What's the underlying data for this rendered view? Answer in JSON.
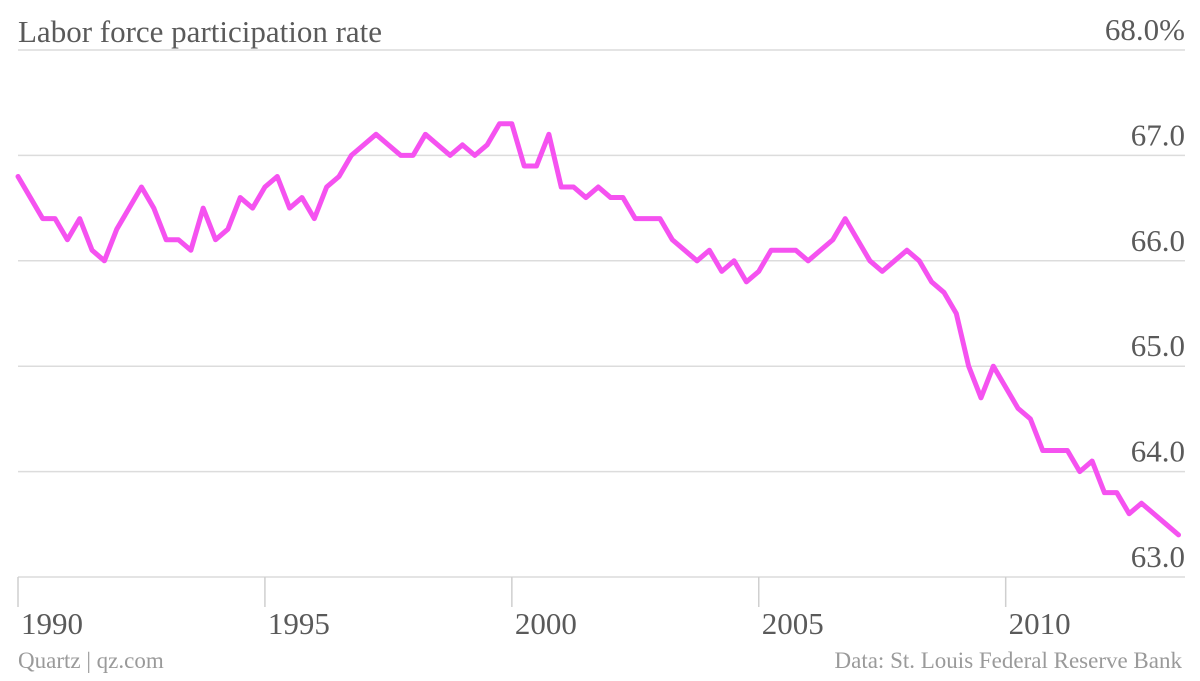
{
  "chart_data": {
    "type": "line",
    "title": "Labor force participation rate",
    "credit": "Quartz | qz.com",
    "source": "Data: St. Louis Federal Reserve Bank",
    "color": "#f552f0",
    "grid": true,
    "xlim": [
      1990,
      2013.55
    ],
    "xticks": [
      1990,
      1995,
      2000,
      2005,
      2010
    ],
    "ylim": [
      63,
      68
    ],
    "yticks": [
      {
        "value": 63,
        "label": "63.0"
      },
      {
        "value": 64,
        "label": "64.0"
      },
      {
        "value": 65,
        "label": "65.0"
      },
      {
        "value": 66,
        "label": "66.0"
      },
      {
        "value": 67,
        "label": "67.0"
      },
      {
        "value": 68,
        "label": "68.0%"
      }
    ],
    "x": [
      1990,
      1990.25,
      1990.5,
      1990.75,
      1991,
      1991.25,
      1991.5,
      1991.75,
      1992,
      1992.25,
      1992.5,
      1992.75,
      1993,
      1993.25,
      1993.5,
      1993.75,
      1994,
      1994.25,
      1994.5,
      1994.75,
      1995,
      1995.25,
      1995.5,
      1995.75,
      1996,
      1996.25,
      1996.5,
      1996.75,
      1997,
      1997.25,
      1997.5,
      1997.75,
      1998,
      1998.25,
      1998.5,
      1998.75,
      1999,
      1999.25,
      1999.5,
      1999.75,
      2000,
      2000.25,
      2000.5,
      2000.75,
      2001,
      2001.25,
      2001.5,
      2001.75,
      2002,
      2002.25,
      2002.5,
      2002.75,
      2003,
      2003.25,
      2003.5,
      2003.75,
      2004,
      2004.25,
      2004.5,
      2004.75,
      2005,
      2005.25,
      2005.5,
      2005.75,
      2006,
      2006.25,
      2006.5,
      2006.75,
      2007,
      2007.25,
      2007.5,
      2007.75,
      2008,
      2008.25,
      2008.5,
      2008.75,
      2009,
      2009.25,
      2009.5,
      2009.75,
      2010,
      2010.25,
      2010.5,
      2010.75,
      2011,
      2011.25,
      2011.5,
      2011.75,
      2012,
      2012.25,
      2012.5,
      2012.75,
      2013,
      2013.25,
      2013.5
    ],
    "values": [
      66.8,
      66.6,
      66.4,
      66.4,
      66.2,
      66.4,
      66.1,
      66.0,
      66.3,
      66.5,
      66.7,
      66.5,
      66.2,
      66.2,
      66.1,
      66.5,
      66.2,
      66.3,
      66.6,
      66.5,
      66.7,
      66.8,
      66.5,
      66.6,
      66.4,
      66.7,
      66.8,
      67.0,
      67.1,
      67.2,
      67.1,
      67.0,
      67.0,
      67.2,
      67.1,
      67.0,
      67.1,
      67.0,
      67.1,
      67.3,
      67.3,
      66.9,
      66.9,
      67.2,
      66.7,
      66.7,
      66.6,
      66.7,
      66.6,
      66.6,
      66.4,
      66.4,
      66.4,
      66.2,
      66.1,
      66.0,
      66.1,
      65.9,
      66.0,
      65.8,
      65.9,
      66.1,
      66.1,
      66.1,
      66.0,
      66.1,
      66.2,
      66.4,
      66.2,
      66.0,
      65.9,
      66.0,
      66.1,
      66.0,
      65.8,
      65.7,
      65.5,
      65.0,
      64.7,
      65.0,
      64.8,
      64.6,
      64.5,
      64.2,
      64.2,
      64.2,
      64.0,
      64.1,
      63.8,
      63.8,
      63.6,
      63.7,
      63.6,
      63.5,
      63.4
    ]
  }
}
